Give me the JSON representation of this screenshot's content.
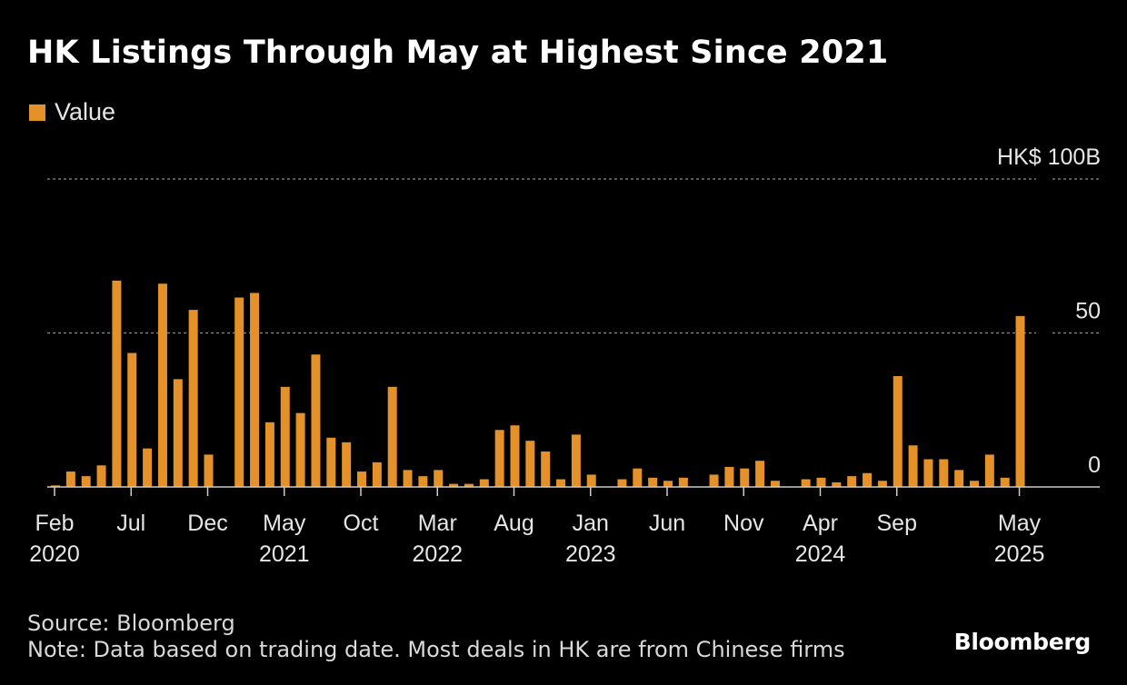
{
  "header": {
    "title": "HK Listings Through May at Highest Since 2021"
  },
  "footer": {
    "source": "Source: Bloomberg",
    "note": "Note: Data based on trading date. Most deals in HK are from Chinese firms",
    "brand": "Bloomberg"
  },
  "colors": {
    "bar": "#e5912a",
    "grid": "#8c8c8c",
    "axis_text": "#e6e6e6"
  },
  "chart_data": {
    "type": "bar",
    "series": [
      {
        "name": "Value"
      }
    ],
    "unit_label": "HK$ 100B",
    "yticks": [
      {
        "value": 100,
        "label": "HK$ 100B"
      },
      {
        "value": 50,
        "label": "50"
      },
      {
        "value": 0,
        "label": "0"
      }
    ],
    "ylim": [
      0,
      100
    ],
    "grid": true,
    "legend": "top-left",
    "xticks": [
      {
        "index": 0,
        "label": "Feb",
        "year": "2020"
      },
      {
        "index": 5,
        "label": "Jul",
        "year": ""
      },
      {
        "index": 10,
        "label": "Dec",
        "year": ""
      },
      {
        "index": 15,
        "label": "May",
        "year": "2021"
      },
      {
        "index": 20,
        "label": "Oct",
        "year": ""
      },
      {
        "index": 25,
        "label": "Mar",
        "year": "2022"
      },
      {
        "index": 30,
        "label": "Aug",
        "year": ""
      },
      {
        "index": 35,
        "label": "Jan",
        "year": "2023"
      },
      {
        "index": 40,
        "label": "Jun",
        "year": ""
      },
      {
        "index": 45,
        "label": "Nov",
        "year": ""
      },
      {
        "index": 50,
        "label": "Apr",
        "year": "2024"
      },
      {
        "index": 55,
        "label": "Sep",
        "year": ""
      },
      {
        "index": 63,
        "label": "May",
        "year": "2025"
      }
    ],
    "categories": [
      "2020-02",
      "2020-03",
      "2020-04",
      "2020-05",
      "2020-06",
      "2020-07",
      "2020-08",
      "2020-09",
      "2020-10",
      "2020-11",
      "2020-12",
      "2021-01",
      "2021-02",
      "2021-03",
      "2021-04",
      "2021-05",
      "2021-06",
      "2021-07",
      "2021-08",
      "2021-09",
      "2021-10",
      "2021-11",
      "2021-12",
      "2022-01",
      "2022-02",
      "2022-03",
      "2022-04",
      "2022-05",
      "2022-06",
      "2022-07",
      "2022-08",
      "2022-09",
      "2022-10",
      "2022-11",
      "2022-12",
      "2023-01",
      "2023-02",
      "2023-03",
      "2023-04",
      "2023-05",
      "2023-06",
      "2023-07",
      "2023-08",
      "2023-09",
      "2023-10",
      "2023-11",
      "2023-12",
      "2024-01",
      "2024-02",
      "2024-03",
      "2024-04",
      "2024-05",
      "2024-06",
      "2024-07",
      "2024-08",
      "2024-09",
      "2024-10",
      "2024-11",
      "2024-12",
      "2025-01",
      "2025-02",
      "2025-03",
      "2025-04",
      "2025-05"
    ],
    "values": [
      0.5,
      5,
      3.5,
      7,
      67,
      43.5,
      12.5,
      66,
      35,
      57.5,
      10.5,
      0,
      61.5,
      63,
      21,
      32.5,
      24,
      43,
      16,
      14.5,
      5,
      8,
      32.5,
      5.5,
      3.5,
      5.5,
      1,
      1,
      2.5,
      18.5,
      20,
      15,
      11.5,
      2.5,
      17,
      4,
      0,
      2.5,
      6,
      3,
      2,
      3,
      0,
      4,
      6.5,
      6,
      8.5,
      2,
      0,
      2.5,
      3,
      1.5,
      3.5,
      4.5,
      2,
      36,
      13.5,
      9,
      9,
      5.5,
      2,
      10.5,
      3,
      55.5
    ]
  }
}
